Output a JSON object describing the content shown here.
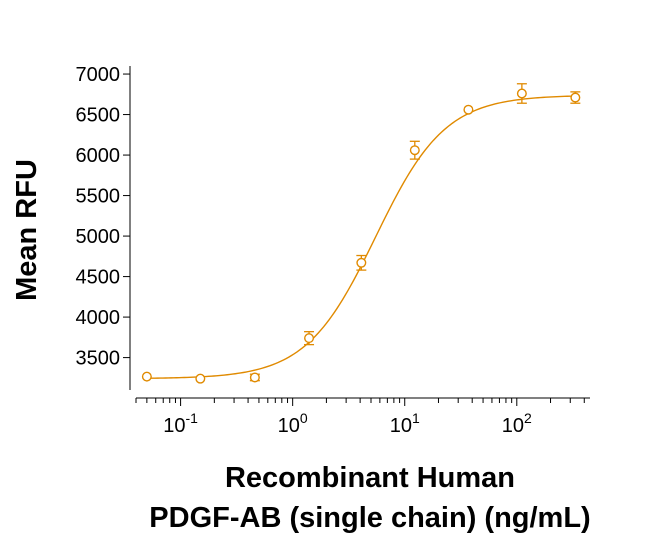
{
  "chart_data": {
    "type": "scatter",
    "title": "",
    "xlabel_lines": [
      "Recombinant Human",
      "PDGF-AB (single chain) (ng/mL)"
    ],
    "ylabel": "Mean RFU",
    "x_scale": "log",
    "xlim": [
      0.04,
      450
    ],
    "ylim": [
      3100,
      7050
    ],
    "y_ticks": [
      3500,
      4000,
      4500,
      5000,
      5500,
      6000,
      6500,
      7000
    ],
    "y_tick_labels": [
      "3500",
      "4000",
      "4500",
      "5000",
      "5500",
      "6000",
      "6500",
      "7000"
    ],
    "x_major_ticks": [
      0.1,
      1,
      10,
      100
    ],
    "x_tick_labels": [
      {
        "base": "10",
        "exp": "-1"
      },
      {
        "base": "10",
        "exp": "0"
      },
      {
        "base": "10",
        "exp": "1"
      },
      {
        "base": "10",
        "exp": "2"
      }
    ],
    "grid": false,
    "legend": "none",
    "color": "#E08A00",
    "points": [
      {
        "x": 0.05,
        "y": 3265,
        "err": 0
      },
      {
        "x": 0.15,
        "y": 3240,
        "err": 0
      },
      {
        "x": 0.46,
        "y": 3255,
        "err": 40
      },
      {
        "x": 1.4,
        "y": 3740,
        "err": 80
      },
      {
        "x": 4.1,
        "y": 4670,
        "err": 90
      },
      {
        "x": 12.3,
        "y": 6060,
        "err": 110
      },
      {
        "x": 37,
        "y": 6560,
        "err": 0
      },
      {
        "x": 111,
        "y": 6760,
        "err": 120
      },
      {
        "x": 333,
        "y": 6710,
        "err": 70
      }
    ],
    "fit": {
      "bottom": 3240,
      "top": 6740,
      "ec50": 5.5,
      "hill": 1.4
    }
  }
}
